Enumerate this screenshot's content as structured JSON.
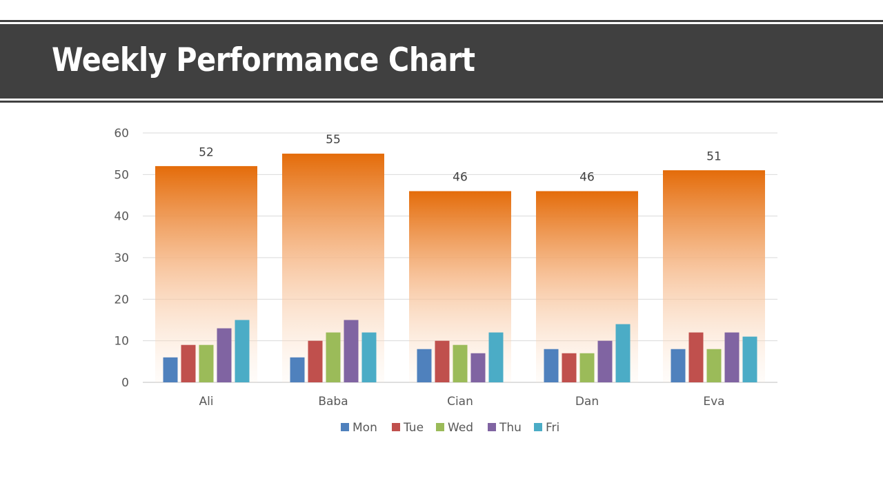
{
  "title": "Weekly Performance Chart",
  "colors": {
    "header_bg": "#404040",
    "total_top": "#E46C0A",
    "Mon": "#4F81BD",
    "Tue": "#C0504D",
    "Wed": "#9BBB59",
    "Thu": "#8064A2",
    "Fri": "#4BACC6",
    "grid": "#D9D9D9"
  },
  "chart_data": {
    "type": "bar",
    "title": "Weekly Performance Chart",
    "categories": [
      "Ali",
      "Baba",
      "Cian",
      "Dan",
      "Eva"
    ],
    "ylim": [
      0,
      60
    ],
    "yticks": [
      0,
      10,
      20,
      30,
      40,
      50,
      60
    ],
    "grid": true,
    "legend_position": "bottom",
    "total": {
      "values": [
        52,
        55,
        46,
        46,
        51
      ],
      "data_labels": [
        "52",
        "55",
        "46",
        "46",
        "51"
      ]
    },
    "series": [
      {
        "name": "Mon",
        "values": [
          6,
          6,
          8,
          8,
          8
        ]
      },
      {
        "name": "Tue",
        "values": [
          9,
          10,
          10,
          7,
          12
        ]
      },
      {
        "name": "Wed",
        "values": [
          9,
          12,
          9,
          7,
          8
        ]
      },
      {
        "name": "Thu",
        "values": [
          13,
          15,
          7,
          10,
          12
        ]
      },
      {
        "name": "Fri",
        "values": [
          15,
          12,
          12,
          14,
          11
        ]
      }
    ]
  }
}
